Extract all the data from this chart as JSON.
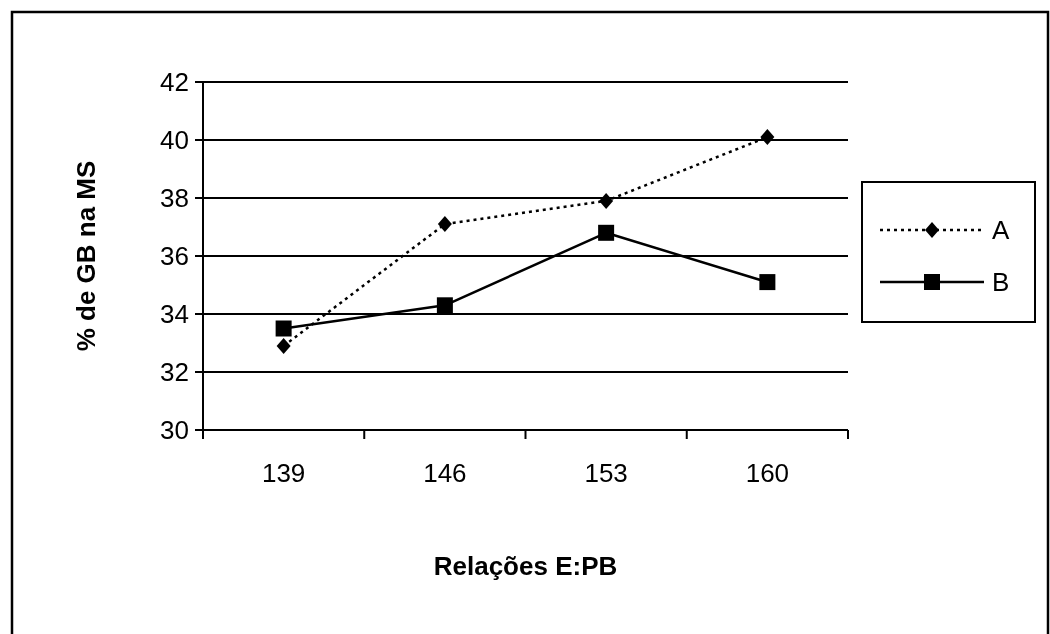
{
  "chart_data": {
    "type": "line",
    "xlabel": "Relações E:PB",
    "ylabel": "% de GB na MS",
    "categories": [
      "139",
      "146",
      "153",
      "160"
    ],
    "series": [
      {
        "name": "A",
        "color": "#000000",
        "values": [
          32.9,
          37.1,
          37.9,
          40.1
        ],
        "marker": "diamond",
        "line_style": "dotted"
      },
      {
        "name": "B",
        "color": "#000000",
        "values": [
          33.5,
          34.3,
          36.8,
          35.1
        ],
        "marker": "square",
        "line_style": "solid"
      }
    ],
    "ylim": [
      30,
      42
    ],
    "yticks": [
      30,
      32,
      34,
      36,
      38,
      40,
      42
    ],
    "grid": "y",
    "legend": "right"
  }
}
